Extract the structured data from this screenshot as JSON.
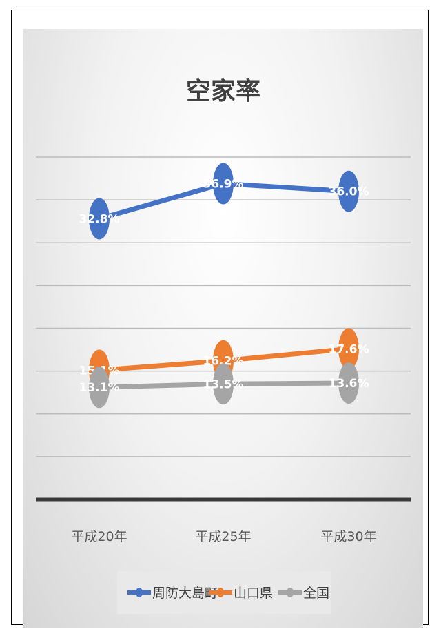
{
  "chart_data": {
    "type": "line",
    "title": "空家率",
    "categories": [
      "平成20年",
      "平成25年",
      "平成30年"
    ],
    "series": [
      {
        "name": "周防大島町",
        "values": [
          32.8,
          36.9,
          36.0
        ],
        "labels": [
          "32.8%",
          "36.9%",
          "36.0%"
        ],
        "color": "#4472c4"
      },
      {
        "name": "山口県",
        "values": [
          15.1,
          16.2,
          17.6
        ],
        "labels": [
          "15.1%",
          "16.2%",
          "17.6%"
        ],
        "color": "#ed7d31"
      },
      {
        "name": "全国",
        "values": [
          13.1,
          13.5,
          13.6
        ],
        "labels": [
          "13.1%",
          "13.5%",
          "13.6%"
        ],
        "color": "#a5a5a5"
      }
    ],
    "ylim": [
      0,
      40
    ],
    "grid": true,
    "legend": "bottom"
  }
}
